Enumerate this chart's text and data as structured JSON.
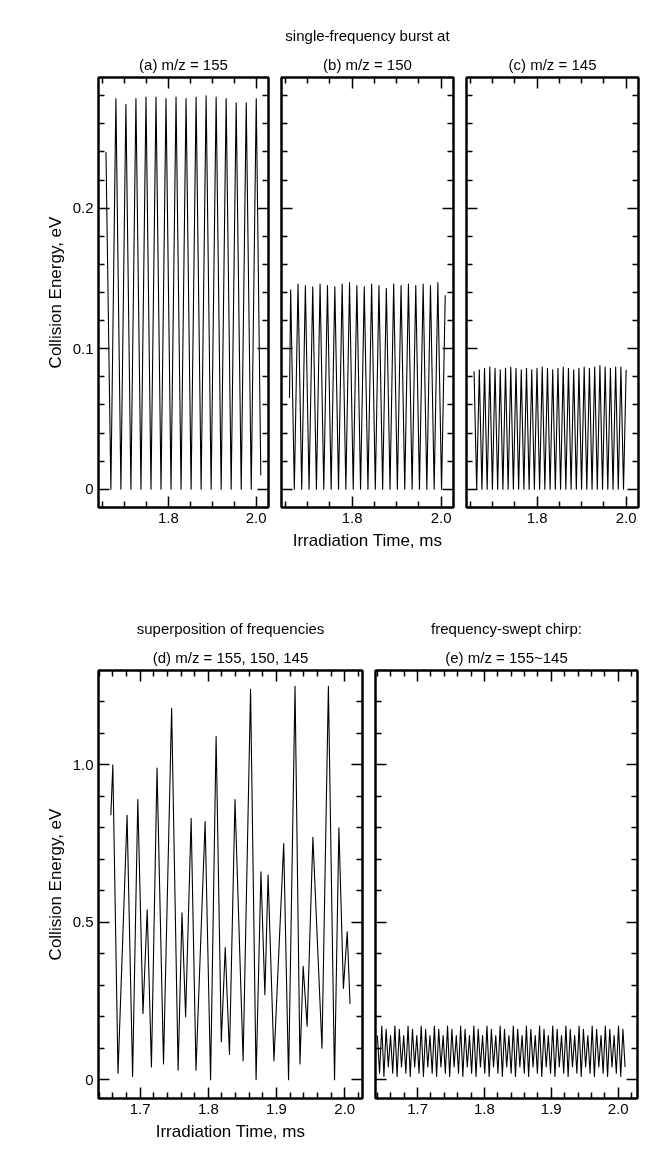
{
  "chart_data": [
    {
      "type": "line",
      "title": "(a) m/z = 155",
      "ylabel": "Collision Energy, eV",
      "tick_labels": null,
      "x": [
        1.658,
        1.6692,
        1.6806,
        1.692,
        1.7034,
        1.7148,
        1.7262,
        1.7377,
        1.7491,
        1.7605,
        1.7719,
        1.7833,
        1.7947,
        1.8061,
        1.8175,
        1.8289,
        1.8403,
        1.8518,
        1.8632,
        1.8746,
        1.886,
        1.8974,
        1.9088,
        1.9202,
        1.9316,
        1.943,
        1.9544,
        1.9659,
        1.9773,
        1.9887,
        2.0001,
        2.0105
      ],
      "series": [
        {
          "color": "#000000",
          "values": [
            0.24,
            0,
            0.278,
            0,
            0.274,
            0,
            0.278,
            0,
            0.279,
            0,
            0.279,
            0,
            0.278,
            0,
            0.279,
            0,
            0.278,
            0,
            0.279,
            0,
            0.28,
            0,
            0.279,
            0,
            0.278,
            0,
            0.275,
            0,
            0.275,
            0,
            0.278,
            0.01
          ]
        }
      ],
      "xlim": [
        1.641,
        2.028
      ],
      "ylim": [
        -0.013,
        0.293
      ],
      "xticks": [
        {
          "value": 1.65,
          "label": null
        },
        {
          "value": 1.7,
          "label": null
        },
        {
          "value": 1.75,
          "label": null
        },
        1.8,
        {
          "value": 1.85,
          "label": null
        },
        {
          "value": 1.9,
          "label": null
        },
        {
          "value": 1.95,
          "label": null
        },
        {
          "value": 2.0,
          "label": "2.0"
        }
      ],
      "yticks": [
        0,
        {
          "value": 0.02,
          "label": null
        },
        {
          "value": 0.04,
          "label": null
        },
        {
          "value": 0.06,
          "label": null
        },
        {
          "value": 0.08,
          "label": null
        },
        0.1,
        {
          "value": 0.12,
          "label": null
        },
        {
          "value": 0.14,
          "label": null
        },
        {
          "value": 0.16,
          "label": null
        },
        {
          "value": 0.18,
          "label": null
        },
        0.2,
        {
          "value": 0.22,
          "label": null
        },
        {
          "value": 0.24,
          "label": null
        },
        {
          "value": 0.26,
          "label": null
        },
        {
          "value": 0.28,
          "label": null
        }
      ]
    },
    {
      "type": "line",
      "title": "(b) m/z = 150",
      "annotations": [
        "single-frequency burst at"
      ],
      "xlabel": "Irradiation Time, ms",
      "tick_labels": "x",
      "x": [
        1.659,
        1.6616,
        1.6699,
        1.6782,
        1.6865,
        1.6947,
        1.703,
        1.7113,
        1.7196,
        1.7278,
        1.7361,
        1.7444,
        1.7527,
        1.761,
        1.7693,
        1.7775,
        1.7858,
        1.7941,
        1.8024,
        1.8106,
        1.8189,
        1.8272,
        1.8355,
        1.8438,
        1.8521,
        1.8603,
        1.8686,
        1.8769,
        1.8852,
        1.8934,
        1.9017,
        1.91,
        1.9183,
        1.9266,
        1.9349,
        1.9431,
        1.9514,
        1.9597,
        1.968,
        1.9762,
        1.9845,
        1.9928,
        2.0011,
        2.0094
      ],
      "series": [
        {
          "color": "#000000",
          "values": [
            0.065,
            0.142,
            0,
            0.146,
            0,
            0.145,
            0,
            0.144,
            0,
            0.146,
            0,
            0.145,
            0,
            0.144,
            0,
            0.146,
            0,
            0.147,
            0,
            0.145,
            0,
            0.144,
            0,
            0.146,
            0,
            0.145,
            0,
            0.143,
            0,
            0.146,
            0,
            0.145,
            0,
            0.146,
            0,
            0.145,
            0,
            0.146,
            0,
            0.145,
            0,
            0.147,
            0,
            0.138
          ]
        }
      ],
      "xlim": [
        1.641,
        2.028
      ],
      "ylim": [
        -0.013,
        0.293
      ],
      "xticks": [
        {
          "value": 1.65,
          "label": null
        },
        {
          "value": 1.7,
          "label": null
        },
        {
          "value": 1.75,
          "label": null
        },
        1.8,
        {
          "value": 1.85,
          "label": null
        },
        {
          "value": 1.9,
          "label": null
        },
        {
          "value": 1.95,
          "label": null
        },
        {
          "value": 2.0,
          "label": "2.0"
        }
      ],
      "yticks": [
        0,
        {
          "value": 0.02,
          "label": null
        },
        {
          "value": 0.04,
          "label": null
        },
        {
          "value": 0.06,
          "label": null
        },
        {
          "value": 0.08,
          "label": null
        },
        0.1,
        {
          "value": 0.12,
          "label": null
        },
        {
          "value": 0.14,
          "label": null
        },
        {
          "value": 0.16,
          "label": null
        },
        {
          "value": 0.18,
          "label": null
        },
        0.2,
        {
          "value": 0.22,
          "label": null
        },
        {
          "value": 0.24,
          "label": null
        },
        {
          "value": 0.26,
          "label": null
        },
        {
          "value": 0.28,
          "label": null
        }
      ]
    },
    {
      "type": "line",
      "title": "(c) m/z = 145",
      "tick_labels": "x",
      "x": [
        1.658,
        1.6639,
        1.6698,
        1.6757,
        1.6816,
        1.6875,
        1.6934,
        1.6993,
        1.7052,
        1.7111,
        1.717,
        1.7229,
        1.7288,
        1.7347,
        1.7406,
        1.7465,
        1.7524,
        1.7583,
        1.7642,
        1.7701,
        1.776,
        1.7819,
        1.7878,
        1.7937,
        1.7996,
        1.8055,
        1.8114,
        1.8173,
        1.8232,
        1.8291,
        1.835,
        1.8409,
        1.8468,
        1.8527,
        1.8586,
        1.8645,
        1.8704,
        1.8763,
        1.8822,
        1.8881,
        1.894,
        1.8999,
        1.9058,
        1.9117,
        1.9176,
        1.9235,
        1.9294,
        1.9353,
        1.9412,
        1.9471,
        1.953,
        1.9589,
        1.9648,
        1.9707,
        1.9766,
        1.9825,
        1.9884,
        1.9943,
        2.0002
      ],
      "series": [
        {
          "color": "#000000",
          "values": [
            0.084,
            0,
            0.085,
            0,
            0.086,
            0,
            0.087,
            0,
            0.086,
            0,
            0.085,
            0,
            0.086,
            0,
            0.087,
            0,
            0.086,
            0,
            0.085,
            0,
            0.086,
            0,
            0.085,
            0,
            0.086,
            0,
            0.087,
            0,
            0.086,
            0,
            0.085,
            0,
            0.086,
            0,
            0.087,
            0,
            0.086,
            0,
            0.085,
            0,
            0.086,
            0,
            0.087,
            0,
            0.086,
            0,
            0.087,
            0,
            0.088,
            0,
            0.087,
            0,
            0.086,
            0,
            0.087,
            0,
            0.087,
            0,
            0.085
          ]
        }
      ],
      "xlim": [
        1.641,
        2.028
      ],
      "ylim": [
        -0.013,
        0.293
      ],
      "xticks": [
        {
          "value": 1.65,
          "label": null
        },
        {
          "value": 1.7,
          "label": null
        },
        {
          "value": 1.75,
          "label": null
        },
        1.8,
        {
          "value": 1.85,
          "label": null
        },
        {
          "value": 1.9,
          "label": null
        },
        {
          "value": 1.95,
          "label": null
        },
        {
          "value": 2.0,
          "label": "2.0"
        }
      ],
      "yticks": [
        0,
        {
          "value": 0.02,
          "label": null
        },
        {
          "value": 0.04,
          "label": null
        },
        {
          "value": 0.06,
          "label": null
        },
        {
          "value": 0.08,
          "label": null
        },
        0.1,
        {
          "value": 0.12,
          "label": null
        },
        {
          "value": 0.14,
          "label": null
        },
        {
          "value": 0.16,
          "label": null
        },
        {
          "value": 0.18,
          "label": null
        },
        0.2,
        {
          "value": 0.22,
          "label": null
        },
        {
          "value": 0.24,
          "label": null
        },
        {
          "value": 0.26,
          "label": null
        },
        {
          "value": 0.28,
          "label": null
        }
      ]
    },
    {
      "type": "line",
      "title": "(d) m/z = 155, 150, 145",
      "annotations": [
        "superposition of frequencies"
      ],
      "xlabel": "Irradiation Time, ms",
      "ylabel": "Collision Energy, eV",
      "x": [
        1.6571,
        1.66,
        1.6676,
        1.6809,
        1.689,
        1.6966,
        1.7042,
        1.7104,
        1.7166,
        1.7248,
        1.7343,
        1.7462,
        1.7557,
        1.7614,
        1.7667,
        1.7748,
        1.7819,
        1.7953,
        1.8033,
        1.8114,
        1.819,
        1.8248,
        1.831,
        1.8391,
        1.851,
        1.8619,
        1.87,
        1.8771,
        1.8829,
        1.8876,
        1.8962,
        1.9105,
        1.9176,
        1.9271,
        1.9343,
        1.939,
        1.9448,
        1.9533,
        1.9666,
        1.976,
        1.985,
        1.9914,
        1.998,
        2.0036,
        2.0077
      ],
      "series": [
        {
          "color": "#000000",
          "values": [
            0.84,
            1.0,
            0.02,
            0.84,
            0.01,
            0.89,
            0.21,
            0.54,
            0.04,
            0.99,
            0.05,
            1.18,
            0.03,
            0.53,
            0.2,
            0.83,
            0.03,
            0.82,
            0.0,
            1.09,
            0.12,
            0.42,
            0.08,
            0.89,
            0.06,
            1.24,
            0.0,
            0.66,
            0.27,
            0.65,
            0.06,
            0.75,
            0.0,
            1.25,
            0.05,
            0.36,
            0.17,
            0.77,
            0.1,
            1.25,
            0.0,
            0.8,
            0.29,
            0.47,
            0.24
          ]
        }
      ],
      "xlim": [
        1.639,
        2.026
      ],
      "ylim": [
        -0.06,
        1.3
      ],
      "xticks": [
        {
          "value": 1.64,
          "label": null
        },
        {
          "value": 1.66,
          "label": null
        },
        {
          "value": 1.68,
          "label": null
        },
        1.7,
        {
          "value": 1.72,
          "label": null
        },
        {
          "value": 1.74,
          "label": null
        },
        {
          "value": 1.76,
          "label": null
        },
        {
          "value": 1.78,
          "label": null
        },
        1.8,
        {
          "value": 1.82,
          "label": null
        },
        {
          "value": 1.84,
          "label": null
        },
        {
          "value": 1.86,
          "label": null
        },
        {
          "value": 1.88,
          "label": null
        },
        1.9,
        {
          "value": 1.92,
          "label": null
        },
        {
          "value": 1.94,
          "label": null
        },
        {
          "value": 1.96,
          "label": null
        },
        {
          "value": 1.98,
          "label": null
        },
        {
          "value": 2.0,
          "label": "2.0"
        },
        {
          "value": 2.02,
          "label": null
        }
      ],
      "yticks": [
        0,
        {
          "value": 0.1,
          "label": null
        },
        {
          "value": 0.2,
          "label": null
        },
        {
          "value": 0.3,
          "label": null
        },
        {
          "value": 0.4,
          "label": null
        },
        0.5,
        {
          "value": 0.6,
          "label": null
        },
        {
          "value": 0.7,
          "label": null
        },
        {
          "value": 0.8,
          "label": null
        },
        {
          "value": 0.9,
          "label": null
        },
        {
          "value": 1.0,
          "label": "1.0"
        },
        {
          "value": 1.1,
          "label": null
        },
        {
          "value": 1.2,
          "label": null
        }
      ]
    },
    {
      "type": "line",
      "title": "(e) m/z = 155~145",
      "annotations": [
        "frequency-swept chirp:"
      ],
      "tick_labels": "x",
      "x": [
        1.6398,
        1.6431,
        1.6464,
        1.6496,
        1.6529,
        1.6562,
        1.6595,
        1.6628,
        1.666,
        1.6693,
        1.6726,
        1.6759,
        1.6792,
        1.6824,
        1.6857,
        1.689,
        1.6923,
        1.6956,
        1.6988,
        1.7021,
        1.7054,
        1.7087,
        1.712,
        1.7152,
        1.7185,
        1.7218,
        1.7251,
        1.7284,
        1.7316,
        1.7349,
        1.7382,
        1.7415,
        1.7448,
        1.748,
        1.7513,
        1.7546,
        1.7579,
        1.7612,
        1.7644,
        1.7677,
        1.771,
        1.7743,
        1.7776,
        1.7808,
        1.7841,
        1.7874,
        1.7907,
        1.794,
        1.7972,
        1.8005,
        1.8038,
        1.8071,
        1.8104,
        1.8136,
        1.8169,
        1.8202,
        1.8235,
        1.8268,
        1.83,
        1.8333,
        1.8366,
        1.8399,
        1.8432,
        1.8464,
        1.8497,
        1.853,
        1.8563,
        1.8596,
        1.8628,
        1.8661,
        1.8694,
        1.8727,
        1.876,
        1.8792,
        1.8825,
        1.8858,
        1.8891,
        1.8924,
        1.8956,
        1.8989,
        1.9022,
        1.9055,
        1.9088,
        1.912,
        1.9153,
        1.9186,
        1.9219,
        1.9252,
        1.9284,
        1.9317,
        1.935,
        1.9383,
        1.9416,
        1.9448,
        1.9481,
        1.9514,
        1.9547,
        1.958,
        1.9612,
        1.9645,
        1.9678,
        1.9711,
        1.9744,
        1.9776,
        1.9809,
        1.9842,
        1.9875,
        1.9908,
        1.994,
        1.9973,
        2.0006,
        2.0039,
        2.0072,
        2.0104
      ],
      "series": [
        {
          "color": "#000000",
          "values": [
            0.14,
            0.02,
            0.17,
            0.01,
            0.16,
            0.04,
            0.14,
            0.02,
            0.17,
            0.01,
            0.16,
            0.04,
            0.14,
            0.02,
            0.17,
            0.01,
            0.16,
            0.04,
            0.14,
            0.02,
            0.17,
            0.01,
            0.16,
            0.04,
            0.14,
            0.02,
            0.17,
            0.01,
            0.16,
            0.04,
            0.14,
            0.02,
            0.17,
            0.01,
            0.16,
            0.04,
            0.14,
            0.02,
            0.17,
            0.01,
            0.16,
            0.04,
            0.14,
            0.02,
            0.17,
            0.01,
            0.16,
            0.04,
            0.14,
            0.02,
            0.17,
            0.01,
            0.16,
            0.04,
            0.14,
            0.02,
            0.17,
            0.01,
            0.16,
            0.04,
            0.14,
            0.02,
            0.17,
            0.01,
            0.16,
            0.04,
            0.14,
            0.02,
            0.17,
            0.01,
            0.16,
            0.04,
            0.14,
            0.02,
            0.17,
            0.01,
            0.16,
            0.04,
            0.14,
            0.02,
            0.17,
            0.01,
            0.16,
            0.04,
            0.14,
            0.02,
            0.17,
            0.01,
            0.16,
            0.04,
            0.14,
            0.02,
            0.17,
            0.01,
            0.16,
            0.04,
            0.14,
            0.02,
            0.17,
            0.01,
            0.16,
            0.04,
            0.14,
            0.02,
            0.17,
            0.01,
            0.16,
            0.04,
            0.14,
            0.02,
            0.17,
            0.01,
            0.16,
            0.04
          ]
        }
      ],
      "xlim": [
        1.637,
        2.029
      ],
      "ylim": [
        -0.06,
        1.3
      ],
      "xticks": [
        {
          "value": 1.64,
          "label": null
        },
        {
          "value": 1.66,
          "label": null
        },
        {
          "value": 1.68,
          "label": null
        },
        1.7,
        {
          "value": 1.72,
          "label": null
        },
        {
          "value": 1.74,
          "label": null
        },
        {
          "value": 1.76,
          "label": null
        },
        {
          "value": 1.78,
          "label": null
        },
        1.8,
        {
          "value": 1.82,
          "label": null
        },
        {
          "value": 1.84,
          "label": null
        },
        {
          "value": 1.86,
          "label": null
        },
        {
          "value": 1.88,
          "label": null
        },
        1.9,
        {
          "value": 1.92,
          "label": null
        },
        {
          "value": 1.94,
          "label": null
        },
        {
          "value": 1.96,
          "label": null
        },
        {
          "value": 1.98,
          "label": null
        },
        {
          "value": 2.0,
          "label": "2.0"
        },
        {
          "value": 2.02,
          "label": null
        }
      ],
      "yticks": [
        0,
        {
          "value": 0.1,
          "label": null
        },
        {
          "value": 0.2,
          "label": null
        },
        {
          "value": 0.3,
          "label": null
        },
        {
          "value": 0.4,
          "label": null
        },
        0.5,
        {
          "value": 0.6,
          "label": null
        },
        {
          "value": 0.7,
          "label": null
        },
        {
          "value": 0.8,
          "label": null
        },
        {
          "value": 0.9,
          "label": null
        },
        1.0,
        {
          "value": 1.1,
          "label": null
        },
        {
          "value": 1.2,
          "label": null
        }
      ]
    }
  ]
}
